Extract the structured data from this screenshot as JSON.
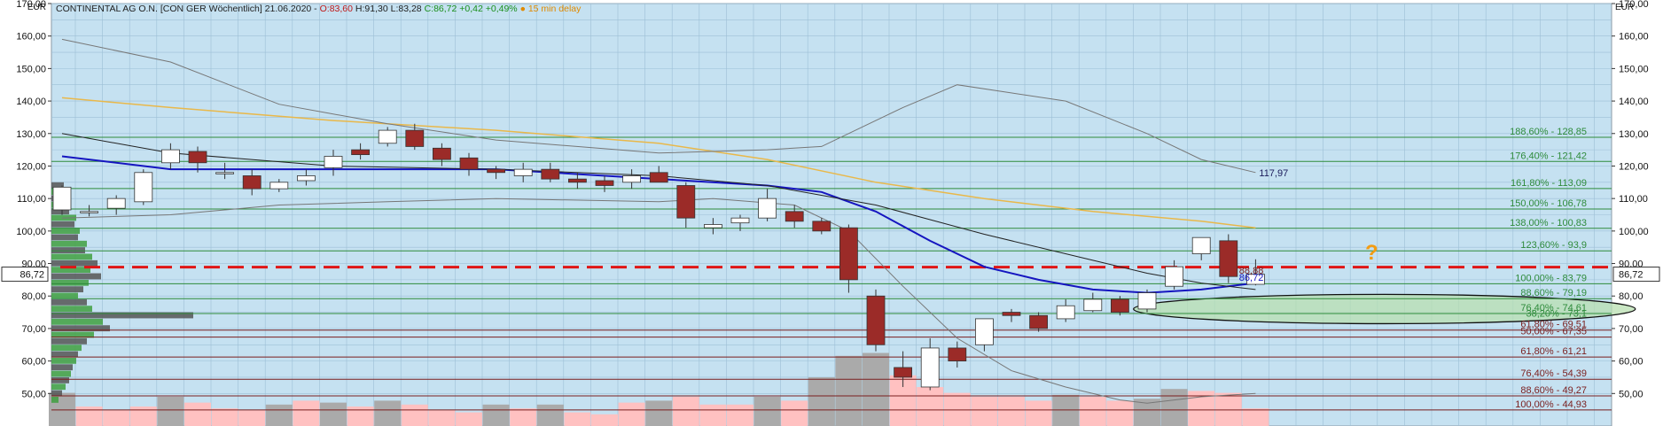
{
  "header": {
    "instrument": "CONTINENTAL AG O.N. [CON GER Wöchentlich] 21.06.2020 -",
    "open": "O:83,60",
    "high_low": "H:91,30 L:83,28",
    "change": "C:86,72 +0,42 +0,49%",
    "delay": "● 15 min delay"
  },
  "colors": {
    "plot_bg": "#c5e1f1",
    "grid": "#9dbfd6",
    "bull_fill": "#ffffff",
    "bear_fill": "#9b2b28",
    "candle_border": "#333333",
    "ma_blue": "#1515c0",
    "ma_orange": "#e9b84a",
    "ma_black": "#222222",
    "bollinger": "#777777",
    "fib_green": "#2e8b3b",
    "fib_darkred": "#7a1e1e",
    "dashed_red": "#e01515",
    "volume_up": "#ffc1c1",
    "volume_down": "#aaaaaa",
    "profile_green": "#3f9f3f",
    "profile_dark": "#555555",
    "header_change": "#1a8f1a",
    "header_delay": "#e08a00",
    "header_open": "#c01818",
    "question": "#f39c12"
  },
  "chart_data": {
    "type": "candlestick",
    "currency_label": "EUR",
    "y_axis": {
      "min": 40,
      "max": 170,
      "ticks": [
        50,
        60,
        70,
        80,
        90,
        100,
        110,
        120,
        130,
        140,
        150,
        160,
        170
      ],
      "tick_labels": [
        "50,00",
        "60,00",
        "70,00",
        "80,00",
        "90,00",
        "100,00",
        "110,00",
        "120,00",
        "130,00",
        "140,00",
        "150,00",
        "160,00",
        "170,00"
      ]
    },
    "current_price": 86.72,
    "current_price_label": "86,72",
    "candles": [
      {
        "o": 106.5,
        "h": 114.0,
        "l": 105.0,
        "c": 113.5
      },
      {
        "o": 106.0,
        "h": 108.0,
        "l": 104.5,
        "c": 106.0
      },
      {
        "o": 107.0,
        "h": 111.0,
        "l": 105.0,
        "c": 110.0
      },
      {
        "o": 109.0,
        "h": 119.0,
        "l": 108.0,
        "c": 118.0
      },
      {
        "o": 121.0,
        "h": 127.0,
        "l": 119.0,
        "c": 125.0
      },
      {
        "o": 124.5,
        "h": 126.0,
        "l": 118.0,
        "c": 121.0
      },
      {
        "o": 118.0,
        "h": 121.0,
        "l": 116.0,
        "c": 118.0
      },
      {
        "o": 117.0,
        "h": 119.0,
        "l": 111.0,
        "c": 113.0
      },
      {
        "o": 113.0,
        "h": 116.0,
        "l": 112.0,
        "c": 115.0
      },
      {
        "o": 115.5,
        "h": 119.0,
        "l": 114.0,
        "c": 117.0
      },
      {
        "o": 119.5,
        "h": 125.0,
        "l": 117.0,
        "c": 123.0
      },
      {
        "o": 125.0,
        "h": 127.0,
        "l": 122.0,
        "c": 123.5
      },
      {
        "o": 127.0,
        "h": 132.0,
        "l": 126.0,
        "c": 131.0
      },
      {
        "o": 131.0,
        "h": 133.0,
        "l": 125.0,
        "c": 126.0
      },
      {
        "o": 125.5,
        "h": 127.0,
        "l": 120.0,
        "c": 122.0
      },
      {
        "o": 122.5,
        "h": 124.0,
        "l": 117.0,
        "c": 119.0
      },
      {
        "o": 119.0,
        "h": 120.0,
        "l": 116.0,
        "c": 118.0
      },
      {
        "o": 117.0,
        "h": 121.0,
        "l": 115.0,
        "c": 119.0
      },
      {
        "o": 119.0,
        "h": 121.0,
        "l": 115.0,
        "c": 116.0
      },
      {
        "o": 116.0,
        "h": 118.0,
        "l": 113.0,
        "c": 115.0
      },
      {
        "o": 115.5,
        "h": 117.0,
        "l": 112.0,
        "c": 114.0
      },
      {
        "o": 115.0,
        "h": 119.0,
        "l": 113.0,
        "c": 117.0
      },
      {
        "o": 118.0,
        "h": 120.0,
        "l": 115.0,
        "c": 115.0
      },
      {
        "o": 114.0,
        "h": 115.0,
        "l": 101.0,
        "c": 104.0
      },
      {
        "o": 101.0,
        "h": 104.0,
        "l": 99.0,
        "c": 102.0
      },
      {
        "o": 102.5,
        "h": 105.0,
        "l": 100.0,
        "c": 104.0
      },
      {
        "o": 104.0,
        "h": 113.0,
        "l": 103.0,
        "c": 110.0
      },
      {
        "o": 106.0,
        "h": 108.0,
        "l": 101.0,
        "c": 103.0
      },
      {
        "o": 103.0,
        "h": 104.0,
        "l": 99.0,
        "c": 100.0
      },
      {
        "o": 101.0,
        "h": 102.0,
        "l": 81.0,
        "c": 85.0
      },
      {
        "o": 80.0,
        "h": 82.0,
        "l": 63.0,
        "c": 65.0
      },
      {
        "o": 58.0,
        "h": 63.0,
        "l": 52.0,
        "c": 55.0
      },
      {
        "o": 52.0,
        "h": 67.0,
        "l": 51.0,
        "c": 64.0
      },
      {
        "o": 64.0,
        "h": 66.0,
        "l": 58.0,
        "c": 60.0
      },
      {
        "o": 65.0,
        "h": 73.0,
        "l": 63.0,
        "c": 73.0
      },
      {
        "o": 75.0,
        "h": 76.0,
        "l": 72.0,
        "c": 74.0
      },
      {
        "o": 74.0,
        "h": 75.0,
        "l": 69.0,
        "c": 70.0
      },
      {
        "o": 73.0,
        "h": 79.0,
        "l": 72.0,
        "c": 77.0
      },
      {
        "o": 75.5,
        "h": 81.0,
        "l": 75.0,
        "c": 79.0
      },
      {
        "o": 79.0,
        "h": 80.0,
        "l": 74.0,
        "c": 75.0
      },
      {
        "o": 76.0,
        "h": 82.0,
        "l": 75.0,
        "c": 81.0
      },
      {
        "o": 83.0,
        "h": 91.0,
        "l": 82.0,
        "c": 89.0
      },
      {
        "o": 93.0,
        "h": 98.0,
        "l": 91.0,
        "c": 98.0
      },
      {
        "o": 97.0,
        "h": 99.0,
        "l": 84.0,
        "c": 86.0
      },
      {
        "o": 83.6,
        "h": 91.3,
        "l": 83.28,
        "c": 86.72
      }
    ],
    "moving_averages": [
      {
        "color_key": "ma_blue",
        "width": 2,
        "points": [
          [
            0,
            123
          ],
          [
            4,
            119
          ],
          [
            10,
            119
          ],
          [
            16,
            119
          ],
          [
            22,
            116
          ],
          [
            26,
            114
          ],
          [
            28,
            112
          ],
          [
            30,
            106
          ],
          [
            32,
            97
          ],
          [
            34,
            89
          ],
          [
            36,
            85
          ],
          [
            38,
            82
          ],
          [
            40,
            81
          ],
          [
            42,
            82
          ],
          [
            44,
            84
          ]
        ],
        "end_label": ""
      },
      {
        "color_key": "ma_orange",
        "width": 1.5,
        "points": [
          [
            0,
            141
          ],
          [
            4,
            138
          ],
          [
            10,
            134
          ],
          [
            16,
            131
          ],
          [
            22,
            127
          ],
          [
            26,
            122
          ],
          [
            30,
            115
          ],
          [
            34,
            110
          ],
          [
            38,
            106
          ],
          [
            42,
            103
          ],
          [
            44,
            101
          ]
        ],
        "end_label": ""
      },
      {
        "color_key": "ma_black",
        "width": 1,
        "points": [
          [
            0,
            130
          ],
          [
            4,
            124
          ],
          [
            10,
            120
          ],
          [
            16,
            119
          ],
          [
            22,
            117
          ],
          [
            26,
            114
          ],
          [
            30,
            108
          ],
          [
            34,
            99
          ],
          [
            38,
            91
          ],
          [
            40,
            87
          ],
          [
            42,
            84
          ],
          [
            44,
            82
          ]
        ],
        "end_label": ""
      },
      {
        "color_key": "bollinger",
        "width": 1,
        "points": [
          [
            0,
            159
          ],
          [
            4,
            152
          ],
          [
            8,
            139
          ],
          [
            12,
            133
          ],
          [
            16,
            128
          ],
          [
            22,
            124
          ],
          [
            26,
            125
          ],
          [
            28,
            126
          ],
          [
            31,
            138
          ],
          [
            33,
            145
          ],
          [
            37,
            140
          ],
          [
            40,
            130
          ],
          [
            42,
            122
          ],
          [
            44,
            118
          ]
        ],
        "end_label": "117,97"
      },
      {
        "color_key": "bollinger",
        "width": 1,
        "points": [
          [
            0,
            104
          ],
          [
            4,
            105
          ],
          [
            8,
            108
          ],
          [
            12,
            109
          ],
          [
            16,
            110
          ],
          [
            22,
            109
          ],
          [
            24,
            110
          ],
          [
            27,
            108
          ],
          [
            29,
            100
          ],
          [
            31,
            83
          ],
          [
            33,
            67
          ],
          [
            35,
            57
          ],
          [
            37,
            52
          ],
          [
            39,
            48
          ],
          [
            40,
            47
          ],
          [
            42,
            49
          ],
          [
            44,
            50
          ]
        ],
        "end_label": ""
      }
    ],
    "fib_levels": [
      {
        "value": 128.85,
        "label": "188,60% - 128,85",
        "color_key": "fib_green"
      },
      {
        "value": 121.42,
        "label": "176,40% - 121,42",
        "color_key": "fib_green"
      },
      {
        "value": 113.09,
        "label": "161,80% - 113,09",
        "color_key": "fib_green"
      },
      {
        "value": 106.78,
        "label": "150,00% - 106,78",
        "color_key": "fib_green"
      },
      {
        "value": 100.83,
        "label": "138,00% - 100,83",
        "color_key": "fib_green"
      },
      {
        "value": 93.9,
        "label": "123,60% - 93,9",
        "color_key": "fib_green"
      },
      {
        "value": 83.79,
        "label": "100,00% - 83,79",
        "color_key": "fib_green"
      },
      {
        "value": 79.19,
        "label": "88,60% - 79,19",
        "color_key": "fib_green"
      },
      {
        "value": 74.61,
        "label": "76,40% - 74,61",
        "color_key": "fib_green"
      },
      {
        "value": 69.51,
        "label": "61,80% - 69,51",
        "color_key": "fib_darkred"
      },
      {
        "value": 67.35,
        "label": "50,00% - 67,35",
        "color_key": "fib_darkred"
      },
      {
        "value": 61.21,
        "label": "61,80% - 61,21",
        "color_key": "fib_darkred"
      },
      {
        "value": 54.39,
        "label": "76,40% - 54,39",
        "color_key": "fib_darkred"
      },
      {
        "value": 49.27,
        "label": "88,60% - 49,27",
        "color_key": "fib_darkred"
      },
      {
        "value": 44.93,
        "label": "100,00% - 44,93",
        "color_key": "fib_darkred"
      }
    ],
    "overlap_labels": [
      {
        "value": 73.6,
        "label": "38,20% - 73,1"
      }
    ],
    "dashed_level": 88.88,
    "price_annotations": [
      {
        "value": 87.9,
        "label": "88,88",
        "color_key": "fib_darkred"
      },
      {
        "value": 85.8,
        "label": "86,72",
        "color_key": "ma_blue"
      }
    ],
    "ellipse": {
      "x1": 39.5,
      "x2": 58,
      "y_top": 80.5,
      "y_bottom": 71.5
    },
    "question_mark": "?",
    "volume_bars": [
      {
        "v": 0.34,
        "up": false
      },
      {
        "v": 0.2,
        "up": true
      },
      {
        "v": 0.16,
        "up": true
      },
      {
        "v": 0.2,
        "up": true
      },
      {
        "v": 0.3,
        "up": false
      },
      {
        "v": 0.24,
        "up": true
      },
      {
        "v": 0.18,
        "up": true
      },
      {
        "v": 0.16,
        "up": true
      },
      {
        "v": 0.22,
        "up": false
      },
      {
        "v": 0.26,
        "up": true
      },
      {
        "v": 0.24,
        "up": false
      },
      {
        "v": 0.2,
        "up": true
      },
      {
        "v": 0.26,
        "up": false
      },
      {
        "v": 0.22,
        "up": true
      },
      {
        "v": 0.16,
        "up": true
      },
      {
        "v": 0.14,
        "up": true
      },
      {
        "v": 0.22,
        "up": false
      },
      {
        "v": 0.18,
        "up": true
      },
      {
        "v": 0.22,
        "up": false
      },
      {
        "v": 0.14,
        "up": true
      },
      {
        "v": 0.12,
        "up": true
      },
      {
        "v": 0.24,
        "up": true
      },
      {
        "v": 0.26,
        "up": false
      },
      {
        "v": 0.3,
        "up": true
      },
      {
        "v": 0.22,
        "up": true
      },
      {
        "v": 0.22,
        "up": true
      },
      {
        "v": 0.3,
        "up": false
      },
      {
        "v": 0.26,
        "up": true
      },
      {
        "v": 0.5,
        "up": false
      },
      {
        "v": 0.72,
        "up": false
      },
      {
        "v": 0.75,
        "up": false
      },
      {
        "v": 0.52,
        "up": true
      },
      {
        "v": 0.4,
        "up": true
      },
      {
        "v": 0.34,
        "up": true
      },
      {
        "v": 0.3,
        "up": true
      },
      {
        "v": 0.3,
        "up": true
      },
      {
        "v": 0.26,
        "up": true
      },
      {
        "v": 0.32,
        "up": false
      },
      {
        "v": 0.3,
        "up": true
      },
      {
        "v": 0.26,
        "up": true
      },
      {
        "v": 0.28,
        "up": false
      },
      {
        "v": 0.38,
        "up": false
      },
      {
        "v": 0.36,
        "up": true
      },
      {
        "v": 0.34,
        "up": true
      },
      {
        "v": 0.18,
        "up": true
      }
    ],
    "volume_profile": [
      {
        "p": 114,
        "w": 14,
        "g": 0
      },
      {
        "p": 112,
        "w": 22,
        "g": 1
      },
      {
        "p": 110,
        "w": 16,
        "g": 0
      },
      {
        "p": 108,
        "w": 18,
        "g": 1
      },
      {
        "p": 106,
        "w": 20,
        "g": 0
      },
      {
        "p": 104,
        "w": 28,
        "g": 1
      },
      {
        "p": 102,
        "w": 26,
        "g": 0
      },
      {
        "p": 100,
        "w": 32,
        "g": 1
      },
      {
        "p": 98,
        "w": 30,
        "g": 0
      },
      {
        "p": 96,
        "w": 40,
        "g": 1
      },
      {
        "p": 94,
        "w": 38,
        "g": 0
      },
      {
        "p": 92,
        "w": 46,
        "g": 1
      },
      {
        "p": 90,
        "w": 52,
        "g": 0
      },
      {
        "p": 88,
        "w": 44,
        "g": 1
      },
      {
        "p": 86,
        "w": 56,
        "g": 0
      },
      {
        "p": 84,
        "w": 42,
        "g": 1
      },
      {
        "p": 82,
        "w": 36,
        "g": 0
      },
      {
        "p": 80,
        "w": 30,
        "g": 1
      },
      {
        "p": 78,
        "w": 40,
        "g": 0
      },
      {
        "p": 76,
        "w": 46,
        "g": 1
      },
      {
        "p": 74,
        "w": 160,
        "g": 0
      },
      {
        "p": 72,
        "w": 58,
        "g": 1
      },
      {
        "p": 70,
        "w": 66,
        "g": 0
      },
      {
        "p": 68,
        "w": 48,
        "g": 1
      },
      {
        "p": 66,
        "w": 40,
        "g": 0
      },
      {
        "p": 64,
        "w": 34,
        "g": 1
      },
      {
        "p": 62,
        "w": 30,
        "g": 0
      },
      {
        "p": 60,
        "w": 28,
        "g": 1
      },
      {
        "p": 58,
        "w": 24,
        "g": 0
      },
      {
        "p": 56,
        "w": 22,
        "g": 1
      },
      {
        "p": 54,
        "w": 20,
        "g": 0
      },
      {
        "p": 52,
        "w": 16,
        "g": 1
      },
      {
        "p": 50,
        "w": 12,
        "g": 0
      },
      {
        "p": 48,
        "w": 8,
        "g": 1
      }
    ]
  }
}
